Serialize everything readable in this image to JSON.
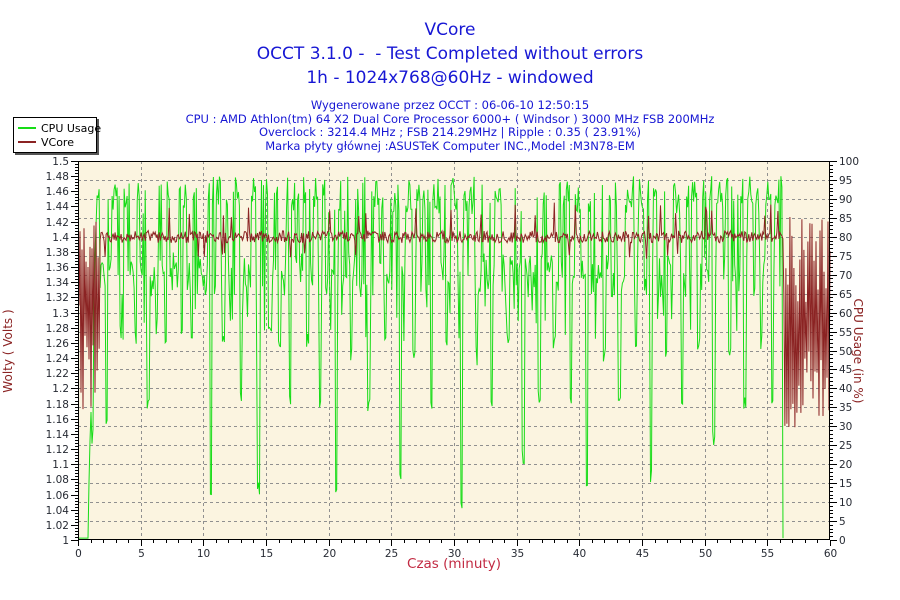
{
  "title": {
    "line1": "VCore",
    "line2": "OCCT 3.1.0 -  - Test Completed without errors",
    "line3": "1h - 1024x768@60Hz - windowed"
  },
  "header": {
    "lines": [
      "Wygenerowane przez OCCT : 06-06-10 12:50:15",
      "CPU : AMD Athlon(tm) 64 X2 Dual Core Processor 6000+ ( Windsor ) 3000 MHz FSB 200MHz",
      "Overclock : 3214.4 MHz ; FSB 214.29MHz | Ripple : 0.35 ( 23.91%)",
      "Marka płyty głównej :ASUSTeK Computer INC.,Model :M3N78-EM"
    ]
  },
  "legend": {
    "items": [
      {
        "label": "CPU Usage",
        "color": "#17dc17"
      },
      {
        "label": "VCore",
        "color": "#8b2323"
      }
    ]
  },
  "chart_data": {
    "type": "line",
    "title": "VCore",
    "xlabel": "Czas (minuty)",
    "ylabel_left": "Wolty ( Volts )",
    "ylabel_right": "CPU Usage (in %)",
    "x_range": [
      0,
      60
    ],
    "x_major": 5,
    "x_minor": 1,
    "yleft_range": [
      1.0,
      1.5
    ],
    "yleft_major": 0.02,
    "yleft_minor": 0.004,
    "yright_range": [
      0,
      100
    ],
    "yright_major": 5,
    "yright_minor": 1,
    "grid": true,
    "legend_position": "top-left",
    "plot_bg": "#fbf4e0",
    "grid_color": "#909090",
    "axis_color": "#000000",
    "tick_label_color": "#262a33",
    "seed": 20100606,
    "series": [
      {
        "name": "CPU Usage",
        "axis": "right",
        "unit": "%",
        "color": "#17dc17",
        "profile": {
          "idle_until": 0.85,
          "ramp_until": 1.45,
          "end_at": 56.2,
          "high_range": [
            86,
            96
          ],
          "low_range": [
            64,
            76
          ],
          "moderate_dip_range": [
            52,
            62
          ],
          "deep_dips": [
            [
              1.15,
              25
            ],
            [
              2.3,
              28
            ],
            [
              3.4,
              52
            ],
            [
              4.6,
              50
            ],
            [
              5.6,
              33
            ],
            [
              7.0,
              48
            ],
            [
              8.3,
              52
            ],
            [
              9.1,
              50
            ],
            [
              10.6,
              10
            ],
            [
              11.6,
              50
            ],
            [
              13.0,
              35
            ],
            [
              14.4,
              12
            ],
            [
              15.3,
              52
            ],
            [
              16.1,
              50
            ],
            [
              16.9,
              33
            ],
            [
              18.3,
              50
            ],
            [
              19.3,
              35
            ],
            [
              20.6,
              12
            ],
            [
              21.8,
              46
            ],
            [
              23.2,
              33
            ],
            [
              24.5,
              50
            ],
            [
              25.7,
              15
            ],
            [
              26.8,
              46
            ],
            [
              28.2,
              33
            ],
            [
              29.4,
              50
            ],
            [
              30.6,
              8
            ],
            [
              31.8,
              46
            ],
            [
              33.0,
              33
            ],
            [
              34.3,
              50
            ],
            [
              35.5,
              20
            ],
            [
              36.8,
              35
            ],
            [
              38.0,
              50
            ],
            [
              39.3,
              33
            ],
            [
              40.6,
              12
            ],
            [
              42.0,
              46
            ],
            [
              43.2,
              33
            ],
            [
              44.5,
              50
            ],
            [
              45.7,
              15
            ],
            [
              46.9,
              46
            ],
            [
              48.2,
              33
            ],
            [
              49.5,
              50
            ],
            [
              50.7,
              25
            ],
            [
              52.0,
              46
            ],
            [
              53.2,
              33
            ],
            [
              54.5,
              50
            ],
            [
              55.4,
              35
            ]
          ]
        },
        "summary": {
          "typical_band_pct": [
            65,
            95
          ],
          "value_before_end": 88,
          "value_after_end": 0
        }
      },
      {
        "name": "VCore",
        "axis": "left",
        "unit": "V",
        "color": "#8b2323",
        "profile": {
          "startup_until": 1.7,
          "startup_range": [
            1.16,
            1.42
          ],
          "stable_mean": 1.4,
          "stable_noise": 0.016,
          "spike_high": 1.445,
          "spike_prob": 0.04,
          "unstable_from": 56.3,
          "unstable_low_range": [
            1.145,
            1.25
          ],
          "unstable_high_range": [
            1.31,
            1.43
          ]
        },
        "summary": {
          "stable_value_v": 1.4,
          "ripple_v": 0.35,
          "ripple_pct": 23.91,
          "tail_range_v": [
            1.14,
            1.45
          ]
        }
      }
    ]
  },
  "geometry_note": "plot area in px: left 78, top 161, width 752, height 379"
}
